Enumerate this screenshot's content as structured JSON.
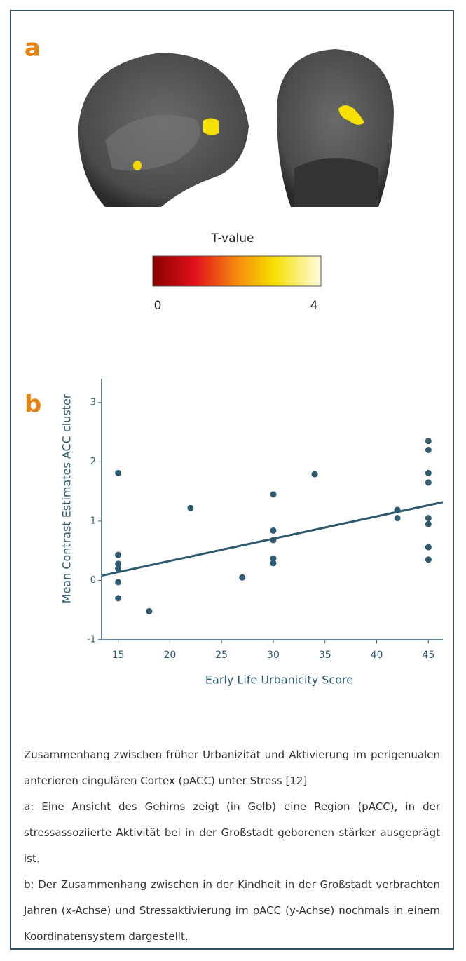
{
  "panel_a": {
    "label": "a",
    "colorbar": {
      "title": "T-value",
      "ticks": [
        0,
        4
      ],
      "lim": [
        0,
        4
      ]
    }
  },
  "panel_b": {
    "label": "b"
  },
  "chart_data": {
    "type": "scatter",
    "color": "#2e5a70",
    "x_label": "Early Life Urbanicity Score",
    "y_label": "Mean Contrast Estimates ACC cluster",
    "x": [
      15,
      15,
      15,
      15,
      15,
      15,
      18,
      22,
      27,
      30,
      30,
      30,
      30,
      30,
      34,
      42,
      42,
      45,
      45,
      45,
      45,
      45,
      45,
      45,
      45
    ],
    "values": [
      1.81,
      0.43,
      0.28,
      0.2,
      -0.03,
      -0.3,
      -0.52,
      1.22,
      0.05,
      1.45,
      0.84,
      0.68,
      0.37,
      0.29,
      1.79,
      1.19,
      1.05,
      2.35,
      2.2,
      1.81,
      1.65,
      1.05,
      0.95,
      0.56,
      0.35
    ],
    "fit_line": {
      "x": [
        13.4,
        46.4
      ],
      "y": [
        0.08,
        1.32
      ]
    },
    "xlim": [
      13.4,
      46.4
    ],
    "ylim": [
      -1,
      3.4
    ],
    "xticks": [
      15,
      20,
      25,
      30,
      35,
      40,
      45
    ],
    "yticks": [
      -1,
      0,
      1,
      2,
      3
    ]
  },
  "caption": {
    "paragraphs": [
      "Zusammenhang zwischen früher Urbanizität und Aktivierung im perigenualen anterioren cingulären Cortex (pACC) unter Stress [12]",
      "a: Eine Ansicht des Gehirns zeigt (in Gelb) eine Region (pACC), in der stressassoziierte Aktivität bei in der Großstadt geborenen stärker ausgeprägt ist.",
      "b: Der Zusammenhang zwischen in der Kindheit in der Großstadt verbrachten Jahren (x-Achse) und Stressaktivierung im pACC (y-Achse) nochmals in einem Koordinatensystem dargestellt."
    ]
  }
}
